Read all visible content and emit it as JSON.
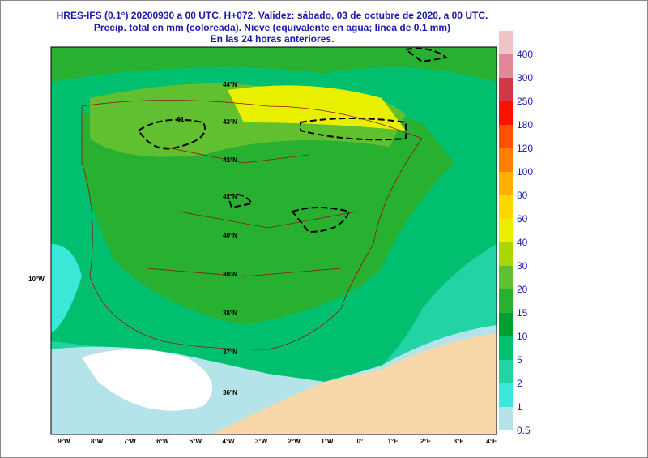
{
  "header": {
    "lines": [
      "HRES-IFS (0.1°) 20200930 a 00 UTC.  H+072. Validez: sábado, 03 de octubre de 2020,  a  00 UTC.",
      "Precip. total en mm (coloreada). Nieve (equivalente en agua; línea de 0.1 mm)",
      "En las 24 horas anteriores."
    ]
  },
  "map": {
    "contour_label": "01",
    "longitudes": [
      "9°W",
      "8°W",
      "7°W",
      "6°W",
      "5°W",
      "4°W",
      "3°W",
      "2°W",
      "1°W",
      "0°",
      "1°E",
      "2°E",
      "3°E",
      "4°E"
    ],
    "latitudes": [
      "44°N",
      "43°N",
      "42°N",
      "41°N",
      "40°N",
      "39°N",
      "38°N",
      "37°N",
      "36°N"
    ],
    "west_label": "10°W"
  },
  "colorbar": {
    "levels": [
      "0.5",
      "1",
      "2",
      "5",
      "10",
      "15",
      "20",
      "30",
      "40",
      "60",
      "80",
      "100",
      "120",
      "180",
      "250",
      "300",
      "400"
    ],
    "colors": [
      "#b4e4ea",
      "#3ce8d8",
      "#22d4a4",
      "#00c070",
      "#00a030",
      "#28b030",
      "#60c030",
      "#a8d800",
      "#e8f000",
      "#ffd800",
      "#ffb000",
      "#ff8000",
      "#ff5000",
      "#ff1000",
      "#d03848",
      "#e08898",
      "#f0c4c4"
    ]
  }
}
